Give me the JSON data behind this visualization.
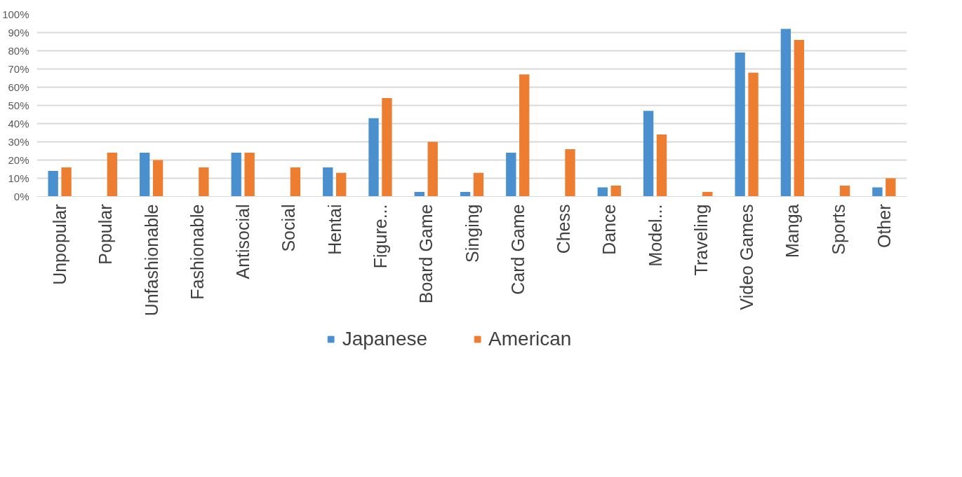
{
  "chart_data": {
    "type": "bar",
    "categories": [
      "Unpopular",
      "Popular",
      "Unfashionable",
      "Fashionable",
      "Antisocial",
      "Social",
      "Hentai",
      "Figure...",
      "Board Game",
      "Singing",
      "Card Game",
      "Chess",
      "Dance",
      "Model...",
      "Traveling",
      "Video Games",
      "Manga",
      "Sports",
      "Other"
    ],
    "series": [
      {
        "name": "Japanese",
        "color": "#4a90cf",
        "values": [
          14,
          0,
          24,
          0,
          24,
          0,
          16,
          43,
          2.5,
          2.5,
          24,
          0,
          5,
          47,
          0,
          79,
          92,
          0,
          5
        ]
      },
      {
        "name": "American",
        "color": "#ed7d31",
        "values": [
          16,
          24,
          20,
          16,
          24,
          16,
          13,
          54,
          30,
          13,
          67,
          26,
          6,
          34,
          2.5,
          68,
          86,
          6,
          10
        ]
      }
    ],
    "ylim": [
      0,
      100
    ],
    "yticks": [
      {
        "value": 0,
        "label": "0%"
      },
      {
        "value": 10,
        "label": "10%"
      },
      {
        "value": 20,
        "label": "20%"
      },
      {
        "value": 30,
        "label": "30%"
      },
      {
        "value": 40,
        "label": "40%"
      },
      {
        "value": 50,
        "label": "50%"
      },
      {
        "value": 60,
        "label": "60%"
      },
      {
        "value": 70,
        "label": "70%"
      },
      {
        "value": 80,
        "label": "80%"
      },
      {
        "value": 90,
        "label": "90%"
      },
      {
        "value": 100,
        "label": "100%"
      }
    ],
    "grid": "y",
    "legend": "bottom"
  }
}
